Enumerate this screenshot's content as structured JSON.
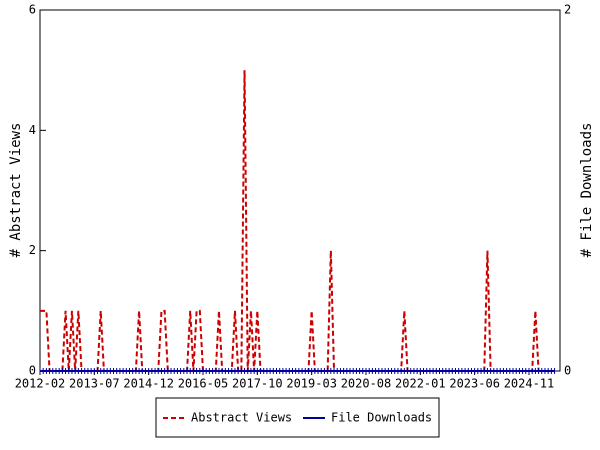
{
  "chart_data": {
    "type": "line",
    "y_label": "# Abstract Views",
    "y2_label": "# File Downloads",
    "categories": [
      "2012-02",
      "2012-03",
      "2012-04",
      "2012-05",
      "2012-06",
      "2012-07",
      "2012-08",
      "2012-09",
      "2012-10",
      "2012-11",
      "2012-12",
      "2013-01",
      "2013-02",
      "2013-03",
      "2013-04",
      "2013-05",
      "2013-06",
      "2013-07",
      "2013-08",
      "2013-09",
      "2013-10",
      "2013-11",
      "2013-12",
      "2014-01",
      "2014-02",
      "2014-03",
      "2014-04",
      "2014-05",
      "2014-06",
      "2014-07",
      "2014-08",
      "2014-09",
      "2014-10",
      "2014-11",
      "2014-12",
      "2015-01",
      "2015-02",
      "2015-03",
      "2015-04",
      "2015-05",
      "2015-06",
      "2015-07",
      "2015-08",
      "2015-09",
      "2015-10",
      "2015-11",
      "2015-12",
      "2016-01",
      "2016-02",
      "2016-03",
      "2016-04",
      "2016-05",
      "2016-06",
      "2016-07",
      "2016-08",
      "2016-09",
      "2016-10",
      "2016-11",
      "2016-12",
      "2017-01",
      "2017-02",
      "2017-03",
      "2017-04",
      "2017-05",
      "2017-06",
      "2017-07",
      "2017-08",
      "2017-09",
      "2017-10",
      "2017-11",
      "2017-12",
      "2018-01",
      "2018-02",
      "2018-03",
      "2018-04",
      "2018-05",
      "2018-06",
      "2018-07",
      "2018-08",
      "2018-09",
      "2018-10",
      "2018-11",
      "2018-12",
      "2019-01",
      "2019-02",
      "2019-03",
      "2019-04",
      "2019-05",
      "2019-06",
      "2019-07",
      "2019-08",
      "2019-09",
      "2019-10",
      "2019-11",
      "2019-12",
      "2020-01",
      "2020-02",
      "2020-03",
      "2020-04",
      "2020-05",
      "2020-06",
      "2020-07",
      "2020-08",
      "2020-09",
      "2020-10",
      "2020-11",
      "2020-12",
      "2021-01",
      "2021-02",
      "2021-03",
      "2021-04",
      "2021-05",
      "2021-06",
      "2021-07",
      "2021-08",
      "2021-09",
      "2021-10",
      "2021-11",
      "2021-12",
      "2022-01",
      "2022-02",
      "2022-03",
      "2022-04",
      "2022-05",
      "2022-06",
      "2022-07",
      "2022-08",
      "2022-09",
      "2022-10",
      "2022-11",
      "2022-12",
      "2023-01",
      "2023-02",
      "2023-03",
      "2023-04",
      "2023-05",
      "2023-06",
      "2023-07",
      "2023-08",
      "2023-09",
      "2023-10",
      "2023-11",
      "2023-12",
      "2024-01",
      "2024-02",
      "2024-03",
      "2024-04",
      "2024-05",
      "2024-06",
      "2024-07",
      "2024-08",
      "2024-09",
      "2024-10",
      "2024-11",
      "2024-12",
      "2025-01",
      "2025-02",
      "2025-03",
      "2025-04",
      "2025-05",
      "2025-06",
      "2025-07"
    ],
    "xticks": [
      "2012-02",
      "2013-07",
      "2014-12",
      "2016-05",
      "2017-10",
      "2019-03",
      "2020-08",
      "2022-01",
      "2023-06",
      "2024-11"
    ],
    "ylim": [
      0,
      6
    ],
    "yticks": [
      0,
      2,
      4,
      6
    ],
    "y2lim": [
      0,
      2
    ],
    "y2ticks": [
      0,
      2
    ],
    "series": [
      {
        "name": "Abstract Views",
        "color": "#cc0000",
        "dashed": true,
        "values": [
          1,
          1,
          1,
          0,
          0,
          0,
          0,
          0,
          1,
          0,
          1,
          0,
          1,
          0,
          0,
          0,
          0,
          0,
          0,
          1,
          0,
          0,
          0,
          0,
          0,
          0,
          0,
          0,
          0,
          0,
          0,
          1,
          0,
          0,
          0,
          0,
          0,
          0,
          1,
          1,
          0,
          0,
          0,
          0,
          0,
          0,
          0,
          1,
          0,
          1,
          1,
          0,
          0,
          0,
          0,
          0,
          1,
          0,
          0,
          0,
          0,
          1,
          0,
          0,
          5,
          0,
          1,
          0,
          1,
          0,
          0,
          0,
          0,
          0,
          0,
          0,
          0,
          0,
          0,
          0,
          0,
          0,
          0,
          0,
          0,
          1,
          0,
          0,
          0,
          0,
          0,
          2,
          0,
          0,
          0,
          0,
          0,
          0,
          0,
          0,
          0,
          0,
          0,
          0,
          0,
          0,
          0,
          0,
          0,
          0,
          0,
          0,
          0,
          0,
          1,
          0,
          0,
          0,
          0,
          0,
          0,
          0,
          0,
          0,
          0,
          0,
          0,
          0,
          0,
          0,
          0,
          0,
          0,
          0,
          0,
          0,
          0,
          0,
          0,
          0,
          2,
          0,
          0,
          0,
          0,
          0,
          0,
          0,
          0,
          0,
          0,
          0,
          0,
          0,
          0,
          1,
          0,
          0,
          0,
          0,
          0,
          0
        ]
      },
      {
        "name": "File Downloads",
        "color": "#000099",
        "dashed": false,
        "axis": "y2",
        "values": [
          0,
          0,
          0,
          0,
          0,
          0,
          0,
          0,
          0,
          0,
          0,
          0,
          0,
          0,
          0,
          0,
          0,
          0,
          0,
          0,
          0,
          0,
          0,
          0,
          0,
          0,
          0,
          0,
          0,
          0,
          0,
          0,
          0,
          0,
          0,
          0,
          0,
          0,
          0,
          0,
          0,
          0,
          0,
          0,
          0,
          0,
          0,
          0,
          0,
          0,
          0,
          0,
          0,
          0,
          0,
          0,
          0,
          0,
          0,
          0,
          0,
          0,
          0,
          0,
          0,
          0,
          0,
          0,
          0,
          0,
          0,
          0,
          0,
          0,
          0,
          0,
          0,
          0,
          0,
          0,
          0,
          0,
          0,
          0,
          0,
          0,
          0,
          0,
          0,
          0,
          0,
          0,
          0,
          0,
          0,
          0,
          0,
          0,
          0,
          0,
          0,
          0,
          0,
          0,
          0,
          0,
          0,
          0,
          0,
          0,
          0,
          0,
          0,
          0,
          0,
          0,
          0,
          0,
          0,
          0,
          0,
          0,
          0,
          0,
          0,
          0,
          0,
          0,
          0,
          0,
          0,
          0,
          0,
          0,
          0,
          0,
          0,
          0,
          0,
          0,
          0,
          0,
          0,
          0,
          0,
          0,
          0,
          0,
          0,
          0,
          0,
          0,
          0,
          0,
          0,
          0,
          0,
          0,
          0,
          0,
          0,
          0
        ]
      }
    ]
  }
}
